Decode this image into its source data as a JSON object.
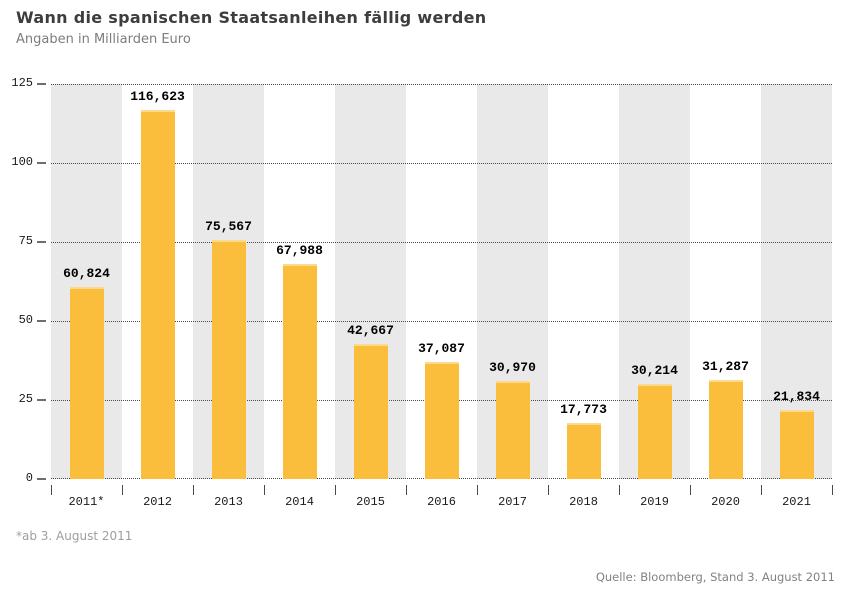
{
  "header": {
    "title": "Wann die spanischen Staatsanleihen fällig werden",
    "subtitle": "Angaben in Milliarden Euro"
  },
  "chart_data": {
    "type": "bar",
    "title": "Wann die spanischen Staatsanleihen fällig werden",
    "unit": "Milliarden Euro",
    "categories": [
      "2011*",
      "2012",
      "2013",
      "2014",
      "2015",
      "2016",
      "2017",
      "2018",
      "2019",
      "2020",
      "2021"
    ],
    "values": [
      60.824,
      116.623,
      75.567,
      67.988,
      42.667,
      37.087,
      30.97,
      17.773,
      30.214,
      31.287,
      21.834
    ],
    "value_labels": [
      "60,824",
      "116,623",
      "75,567",
      "67,988",
      "42,667",
      "37,087",
      "30,970",
      "17,773",
      "30,214",
      "31,287",
      "21,834"
    ],
    "y_ticks": [
      0,
      25,
      50,
      75,
      100,
      125
    ],
    "y_tick_labels": [
      "0",
      "25",
      "50",
      "75",
      "100",
      "125"
    ],
    "ylim": [
      0,
      125
    ],
    "xlabel": "",
    "ylabel": "",
    "grid": "horizontal-dotted",
    "legend": "none",
    "band_pattern": "alternating-on-odd-years",
    "colors": {
      "bar": "#FBBE3C",
      "bar_top_highlight": "#FDD98B",
      "band": "#E9E9E9",
      "grid": "#4a4a4a",
      "axis_text": "#1a1a1a"
    }
  },
  "footnote": "*ab 3. August 2011",
  "source": "Quelle: Bloomberg, Stand 3. August 2011"
}
